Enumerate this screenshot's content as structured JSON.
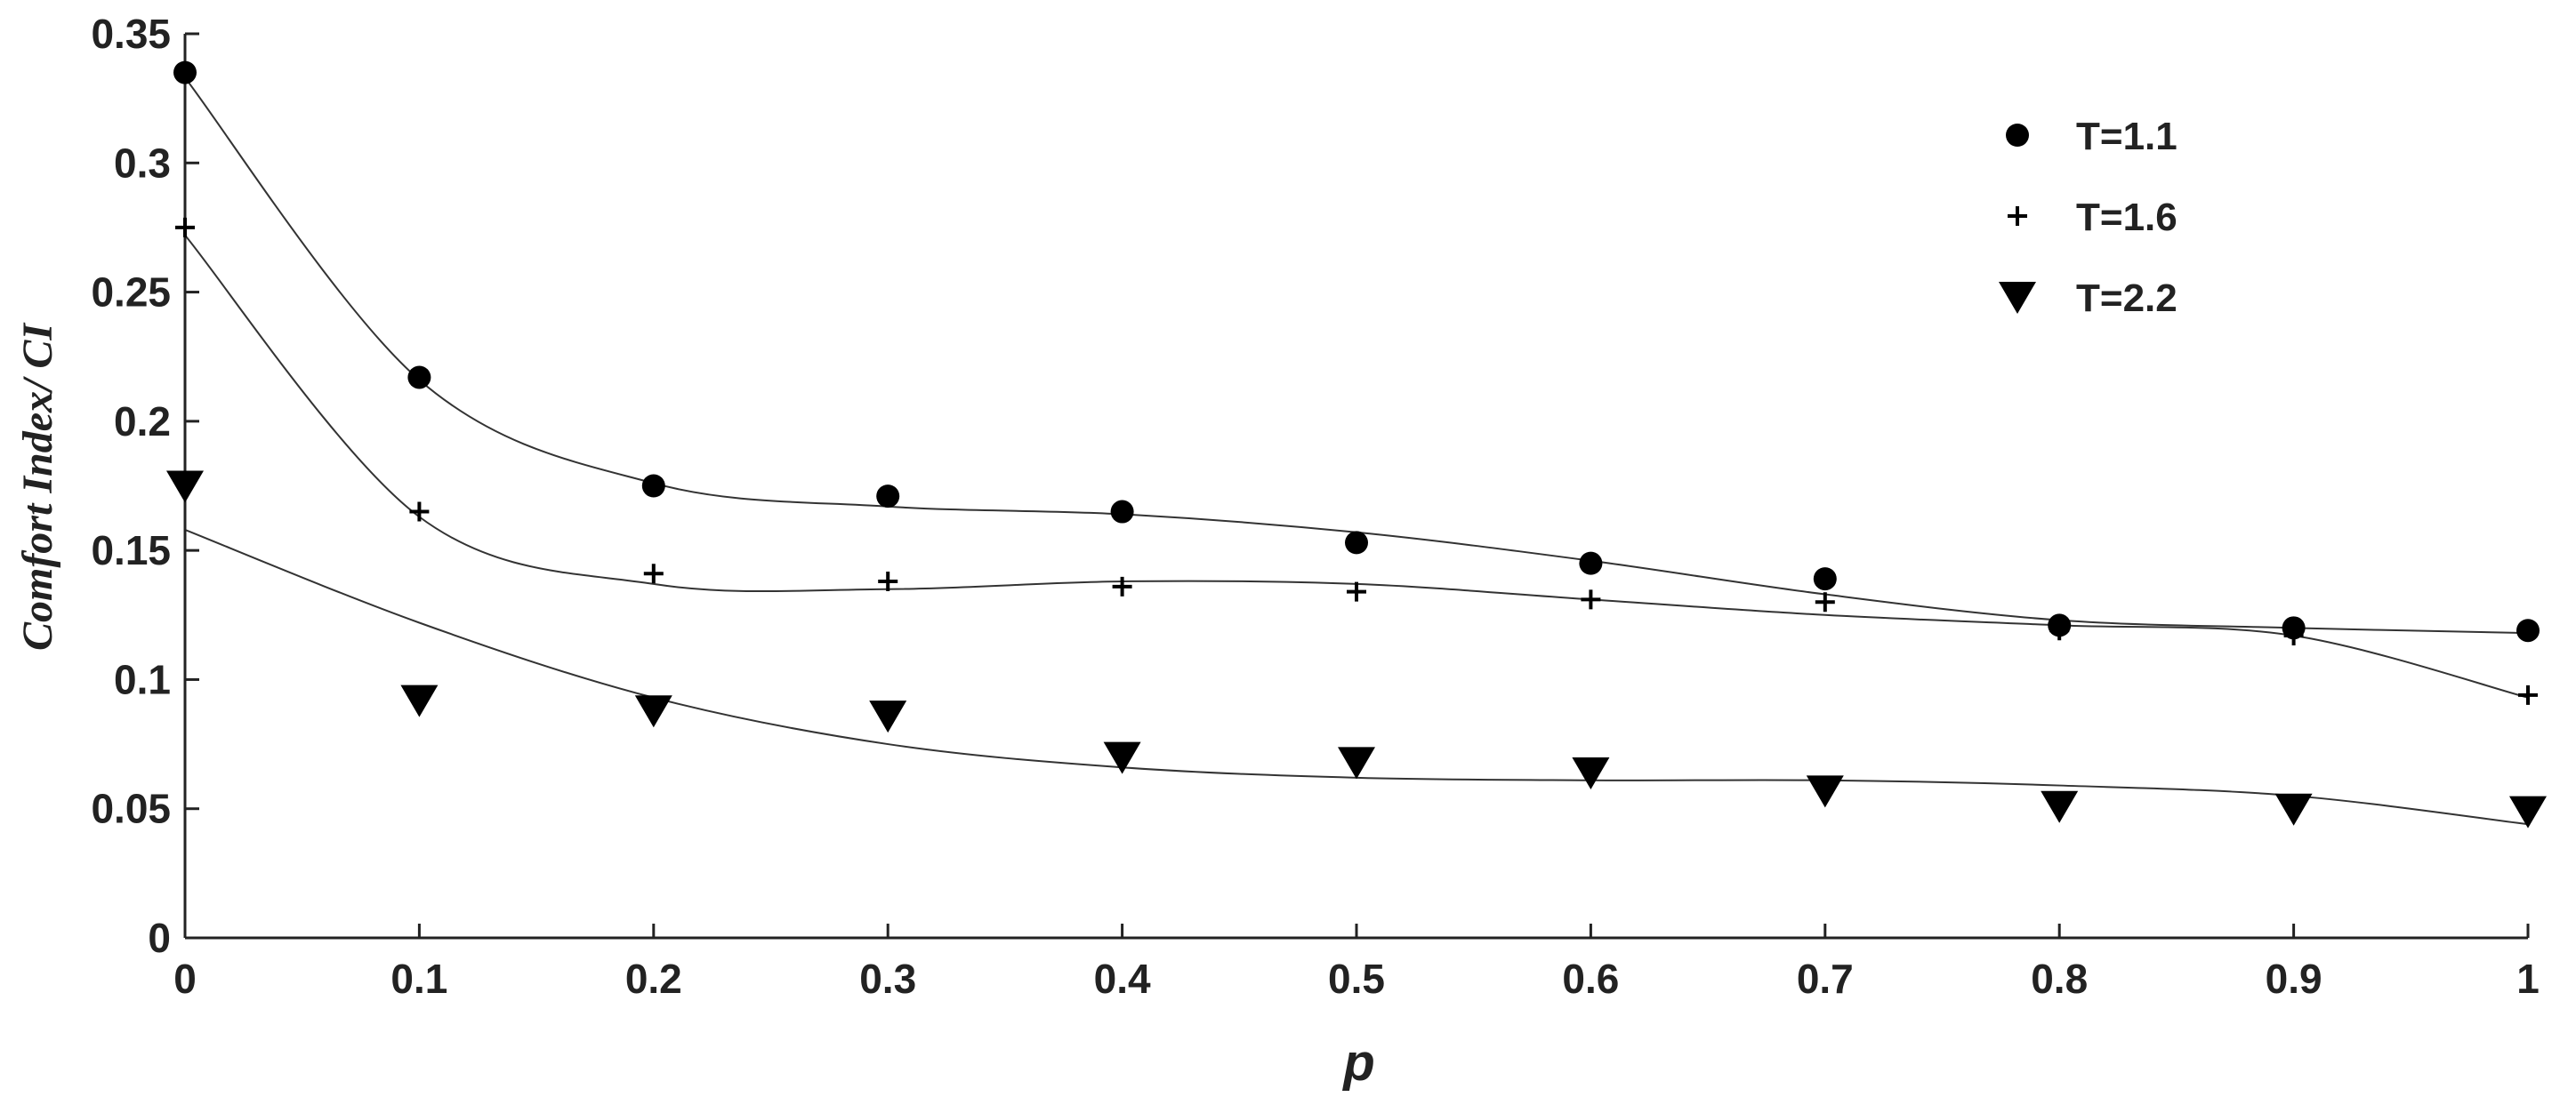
{
  "chart_data": {
    "type": "scatter",
    "xlabel": "p",
    "ylabel": "Comfort Index/ CI",
    "xlim": [
      0,
      1
    ],
    "ylim": [
      0,
      0.35
    ],
    "x_ticks": [
      "0",
      "0.1",
      "0.2",
      "0.3",
      "0.4",
      "0.5",
      "0.6",
      "0.7",
      "0.8",
      "0.9",
      "1"
    ],
    "y_ticks": [
      "0",
      "0.05",
      "0.1",
      "0.15",
      "0.2",
      "0.25",
      "0.3",
      "0.35"
    ],
    "grid": false,
    "legend_position": "top-right",
    "x": [
      0,
      0.1,
      0.2,
      0.3,
      0.4,
      0.5,
      0.6,
      0.7,
      0.8,
      0.9,
      1.0
    ],
    "series": [
      {
        "name": "T=1.1",
        "marker": "circle",
        "values": [
          0.335,
          0.217,
          0.175,
          0.171,
          0.165,
          0.153,
          0.145,
          0.139,
          0.121,
          0.12,
          0.119
        ],
        "fit": [
          0.333,
          0.216,
          0.176,
          0.167,
          0.164,
          0.157,
          0.146,
          0.133,
          0.123,
          0.12,
          0.118
        ]
      },
      {
        "name": "T=1.6",
        "marker": "plus",
        "values": [
          0.275,
          0.165,
          0.141,
          0.138,
          0.136,
          0.134,
          0.131,
          0.13,
          0.119,
          0.117,
          0.094
        ],
        "fit": [
          0.272,
          0.163,
          0.137,
          0.135,
          0.138,
          0.137,
          0.131,
          0.125,
          0.121,
          0.117,
          0.093
        ]
      },
      {
        "name": "T=2.2",
        "marker": "triangle-down",
        "values": [
          0.175,
          0.092,
          0.088,
          0.086,
          0.07,
          0.068,
          0.064,
          0.057,
          0.051,
          0.05,
          0.049
        ],
        "fit": [
          0.158,
          0.122,
          0.093,
          0.075,
          0.066,
          0.062,
          0.061,
          0.061,
          0.059,
          0.055,
          0.044
        ]
      }
    ]
  },
  "colors": {
    "marker": "#000000",
    "axis": "#222222",
    "fit_line": "#333333"
  }
}
